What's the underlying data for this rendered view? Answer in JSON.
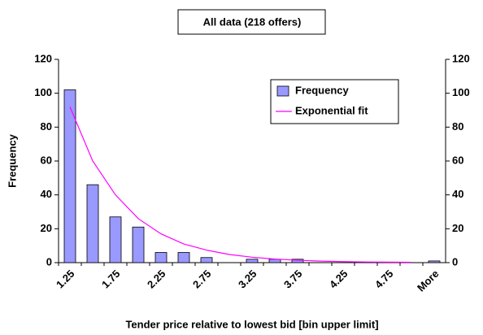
{
  "chart_data": {
    "type": "bar",
    "title": "All data (218 offers)",
    "x_label": "Tender price relative to lowest bid [bin upper limit]",
    "y_label": "Frequency",
    "categories": [
      "1.25",
      null,
      "1.75",
      null,
      "2.25",
      null,
      "2.75",
      null,
      "3.25",
      null,
      "3.75",
      null,
      "4.25",
      null,
      "4.75",
      null,
      "More"
    ],
    "series": [
      {
        "name": "Frequency",
        "type": "bar",
        "color": "#9999ff",
        "values": [
          102,
          46,
          27,
          21,
          6,
          6,
          3,
          0,
          2,
          2,
          2,
          0,
          0,
          0,
          0,
          0,
          1
        ]
      },
      {
        "name": "Exponential fit",
        "type": "line",
        "color": "#ff00ff",
        "values": [
          92,
          60,
          40,
          26,
          17,
          11,
          7.4,
          4.8,
          3.2,
          2.1,
          1.4,
          0.9,
          0.6,
          0.4,
          0.3,
          0.2,
          null
        ]
      }
    ],
    "ylim": [
      0,
      120
    ],
    "yticks": [
      0,
      20,
      40,
      60,
      80,
      100,
      120
    ],
    "y2lim": [
      0,
      120
    ],
    "y2ticks": [
      0,
      20,
      40,
      60,
      80,
      100,
      120
    ],
    "legend": "upper right",
    "grid": false
  }
}
